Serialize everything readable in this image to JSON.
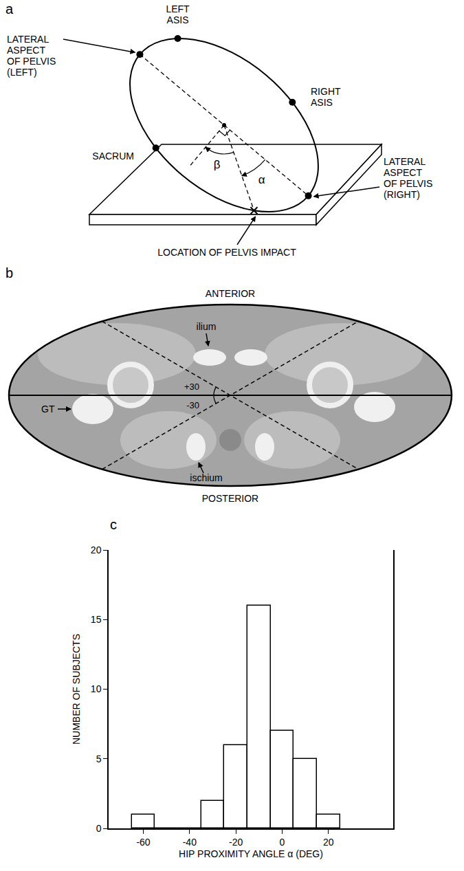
{
  "panel_a": {
    "panel": "a",
    "labels": {
      "left_lateral": [
        "LATERAL",
        "ASPECT",
        "OF PELVIS",
        "(LEFT)"
      ],
      "left_asis": [
        "LEFT",
        "ASIS"
      ],
      "right_asis": [
        "RIGHT",
        "ASIS"
      ],
      "sacrum": [
        "SACRUM"
      ],
      "right_lateral": [
        "LATERAL",
        "ASPECT",
        "OF PELVIS",
        "(RIGHT)"
      ],
      "impact": [
        "LOCATION OF PELVIS IMPACT"
      ]
    },
    "angles": {
      "alpha": "α",
      "beta": "β"
    }
  },
  "panel_b": {
    "panel": "b",
    "anterior": "ANTERIOR",
    "posterior": "POSTERIOR",
    "labels": {
      "ilium": "ilium",
      "gt": "GT",
      "ischium": "ischium"
    },
    "angles": [
      {
        "value": 30,
        "label": "+30"
      },
      {
        "value": -30,
        "label": "-30"
      }
    ]
  },
  "chart_data": {
    "panel": "c",
    "type": "histogram",
    "bins": [
      -65,
      -55,
      -45,
      -35,
      -25,
      -15,
      -5,
      5,
      15,
      25
    ],
    "counts": [
      1,
      0,
      0,
      2,
      6,
      16,
      7,
      5,
      1
    ],
    "color": "#ffffff",
    "xlabel": "HIP PROXIMITY ANGLE α (DEG)",
    "ylabel": "NUMBER OF SUBJECTS",
    "xlim": [
      -75,
      48
    ],
    "ylim": [
      0,
      20
    ],
    "xticks": [
      -60,
      -40,
      -20,
      0,
      20
    ],
    "yticks": [
      0,
      5,
      10,
      15,
      20
    ],
    "grid": false
  }
}
